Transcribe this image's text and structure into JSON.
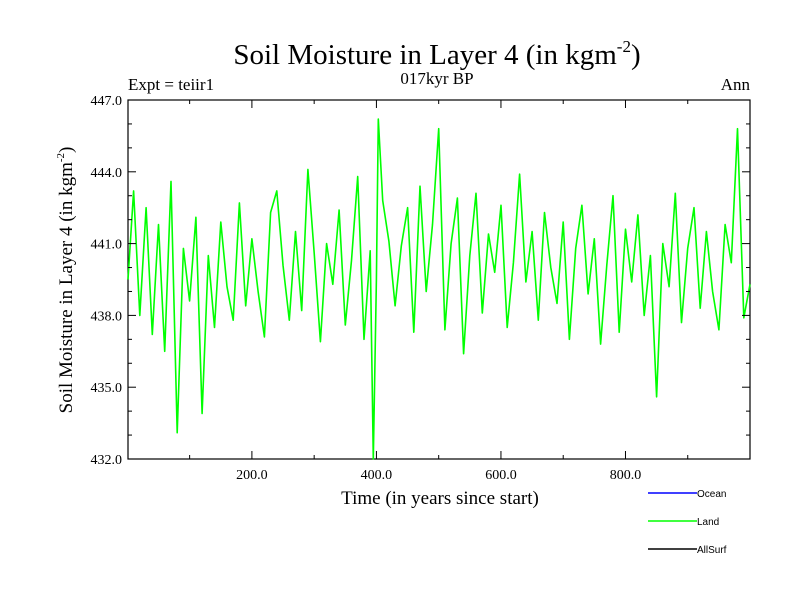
{
  "chart_data": {
    "type": "line",
    "title": {
      "main": "Soil Moisture in Layer 4 (in kgm",
      "sup": "-2",
      "close": ")"
    },
    "subtitle_left": "Expt = teiir1",
    "subtitle_center": "017kyr BP",
    "subtitle_right": "Ann",
    "xlabel": "Time (in years since start)",
    "ylabel": {
      "main": "Soil Moisture in Layer 4 (in kgm",
      "sup": "-2",
      "close": ")"
    },
    "xlim": [
      1,
      1000
    ],
    "ylim": [
      432,
      447
    ],
    "xticks": [
      200,
      400,
      600,
      800
    ],
    "xtick_labels": [
      "200.0",
      "400.0",
      "600.0",
      "800.0"
    ],
    "yticks": [
      432,
      435,
      438,
      441,
      444,
      447
    ],
    "ytick_labels": [
      "432.0",
      "435.0",
      "438.0",
      "441.0",
      "444.0",
      "447.0"
    ],
    "grid": false,
    "legend_position": "bottom-right",
    "legend": [
      {
        "label": "Ocean",
        "color": "#0000ff"
      },
      {
        "label": "Land",
        "color": "#00ff00"
      },
      {
        "label": "AllSurf",
        "color": "#000000"
      }
    ],
    "series": [
      {
        "name": "Land",
        "color": "#00ff00",
        "x": [
          1,
          10,
          20,
          30,
          40,
          50,
          60,
          70,
          80,
          90,
          100,
          110,
          120,
          130,
          140,
          150,
          160,
          170,
          180,
          190,
          200,
          210,
          220,
          230,
          240,
          250,
          260,
          270,
          280,
          290,
          300,
          310,
          320,
          330,
          340,
          350,
          360,
          370,
          380,
          390,
          395,
          400,
          403,
          410,
          420,
          430,
          440,
          450,
          460,
          470,
          480,
          490,
          500,
          510,
          520,
          530,
          540,
          550,
          560,
          570,
          580,
          590,
          600,
          610,
          620,
          630,
          640,
          650,
          660,
          670,
          680,
          690,
          700,
          710,
          720,
          730,
          740,
          750,
          760,
          770,
          780,
          790,
          800,
          810,
          820,
          830,
          840,
          850,
          860,
          870,
          880,
          890,
          900,
          910,
          920,
          930,
          940,
          950,
          960,
          970,
          980,
          990,
          1000
        ],
        "y": [
          439.5,
          443.2,
          438.0,
          442.5,
          437.2,
          441.8,
          436.5,
          443.6,
          433.1,
          440.8,
          438.6,
          442.1,
          433.9,
          440.5,
          437.5,
          441.9,
          439.2,
          437.8,
          442.7,
          438.4,
          441.2,
          439.0,
          437.1,
          442.3,
          443.2,
          440.1,
          437.8,
          441.5,
          438.2,
          444.1,
          440.6,
          436.9,
          441.0,
          439.3,
          442.4,
          437.6,
          440.3,
          443.8,
          437.0,
          440.7,
          432.0,
          439.5,
          446.2,
          442.8,
          441.1,
          438.4,
          440.9,
          442.5,
          437.3,
          443.4,
          439.0,
          441.8,
          445.8,
          437.4,
          441.0,
          442.9,
          436.4,
          440.5,
          443.1,
          438.1,
          441.4,
          439.8,
          442.6,
          437.5,
          440.2,
          443.9,
          439.4,
          441.5,
          437.8,
          442.3,
          440.0,
          438.5,
          441.9,
          437.0,
          440.8,
          442.6,
          438.9,
          441.2,
          436.8,
          440.1,
          443.0,
          437.3,
          441.6,
          439.4,
          442.2,
          438.0,
          440.5,
          434.6,
          441.0,
          439.2,
          443.1,
          437.7,
          440.8,
          442.5,
          438.3,
          441.5,
          439.0,
          437.4,
          441.8,
          440.2,
          445.8,
          437.9,
          439.3
        ]
      }
    ]
  }
}
